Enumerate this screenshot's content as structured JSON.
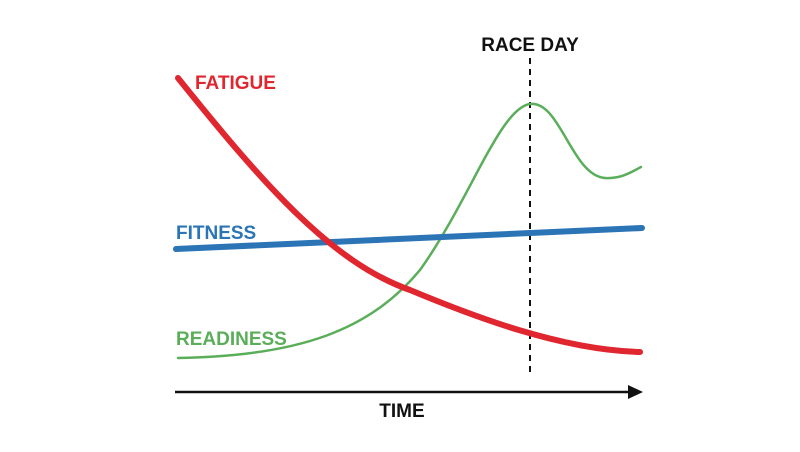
{
  "race_day": "RACE DAY",
  "x_axis": "TIME",
  "curves": [
    {
      "label": "FATIGUE"
    },
    {
      "label": "FITNESS"
    },
    {
      "label": "READINESS"
    }
  ]
}
